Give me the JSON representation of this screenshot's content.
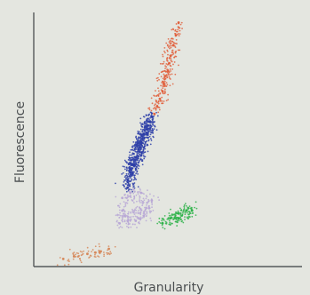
{
  "chart_data": {
    "type": "scatter",
    "title": "",
    "xlabel": "Granularity",
    "ylabel": "Fluorescence",
    "xlim": [
      0,
      100
    ],
    "ylim": [
      0,
      100
    ],
    "grid": false,
    "legend": "none",
    "series": [
      {
        "color": "#2e3fa8",
        "count": 650,
        "points": [
          [
            35,
            31
          ],
          [
            35,
            34
          ],
          [
            36,
            37
          ],
          [
            37,
            40
          ],
          [
            38,
            43
          ],
          [
            39,
            46
          ],
          [
            40,
            49
          ],
          [
            41,
            52
          ],
          [
            42,
            54
          ],
          [
            43,
            57
          ],
          [
            44,
            59
          ]
        ]
      },
      {
        "color": "#e0613e",
        "count": 240,
        "points": [
          [
            45,
            60
          ],
          [
            46,
            63
          ],
          [
            47,
            66
          ],
          [
            48,
            69
          ],
          [
            48.5,
            72
          ],
          [
            49,
            75
          ],
          [
            50,
            77
          ],
          [
            50.5,
            80
          ],
          [
            51,
            83
          ],
          [
            52,
            87
          ],
          [
            53,
            91
          ],
          [
            54,
            96
          ]
        ]
      },
      {
        "color": "#b9a8d6",
        "count": 260,
        "points": [
          [
            32,
            17
          ],
          [
            35,
            18
          ],
          [
            38,
            18
          ],
          [
            41,
            20
          ],
          [
            43,
            23
          ],
          [
            44,
            26
          ],
          [
            40,
            29
          ],
          [
            36,
            29
          ],
          [
            33,
            27
          ],
          [
            33,
            22
          ]
        ]
      },
      {
        "color": "#2fb34a",
        "count": 150,
        "points": [
          [
            48,
            17
          ],
          [
            51,
            19
          ],
          [
            54,
            21
          ],
          [
            57,
            22
          ],
          [
            59,
            22
          ],
          [
            54,
            19
          ]
        ]
      },
      {
        "color": "#d6885a",
        "count": 70,
        "points": [
          [
            11,
            3
          ],
          [
            15,
            4
          ],
          [
            20,
            5
          ],
          [
            25,
            6
          ],
          [
            28,
            7
          ],
          [
            23,
            5.5
          ]
        ]
      }
    ]
  }
}
